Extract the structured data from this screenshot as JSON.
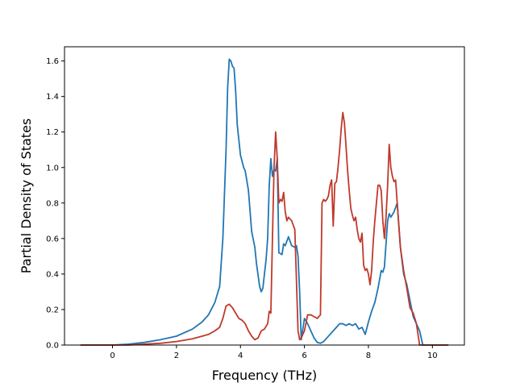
{
  "chart_data": {
    "type": "line",
    "title": "",
    "xlabel": "Frequency (THz)",
    "ylabel": "Partial Density of States",
    "xlim": [
      -1.5,
      11.0
    ],
    "ylim": [
      0.0,
      1.68
    ],
    "x_ticks": [
      0,
      2,
      4,
      6,
      8,
      10
    ],
    "x_tick_labels": [
      "0",
      "2",
      "4",
      "6",
      "8",
      "10"
    ],
    "y_ticks": [
      0.0,
      0.2,
      0.4,
      0.6,
      0.8,
      1.0,
      1.2,
      1.4,
      1.6
    ],
    "y_tick_labels": [
      "0.0",
      "0.2",
      "0.4",
      "0.6",
      "0.8",
      "1.0",
      "1.2",
      "1.4",
      "1.6"
    ],
    "grid": false,
    "legend": "none",
    "series": [
      {
        "color": "#1f77b4",
        "x": [
          -1.0,
          0.0,
          0.5,
          1.0,
          1.5,
          2.0,
          2.5,
          2.8,
          3.0,
          3.2,
          3.35,
          3.45,
          3.55,
          3.6,
          3.65,
          3.7,
          3.75,
          3.8,
          3.85,
          3.9,
          4.0,
          4.1,
          4.15,
          4.25,
          4.35,
          4.45,
          4.5,
          4.6,
          4.65,
          4.7,
          4.75,
          4.8,
          4.85,
          4.9,
          4.95,
          5.0,
          5.05,
          5.1,
          5.15,
          5.2,
          5.3,
          5.35,
          5.4,
          5.5,
          5.6,
          5.7,
          5.75,
          5.8,
          5.85,
          5.9,
          6.0,
          6.1,
          6.2,
          6.3,
          6.4,
          6.5,
          6.6,
          6.7,
          6.8,
          6.9,
          7.0,
          7.1,
          7.2,
          7.3,
          7.4,
          7.5,
          7.6,
          7.7,
          7.8,
          7.9,
          8.0,
          8.1,
          8.2,
          8.3,
          8.4,
          8.45,
          8.5,
          8.6,
          8.65,
          8.7,
          8.8,
          8.9,
          9.0,
          9.1,
          9.2,
          9.3,
          9.4,
          9.5,
          9.6,
          9.7,
          10.0,
          10.5
        ],
        "y": [
          0.0,
          0.0,
          0.005,
          0.015,
          0.03,
          0.05,
          0.09,
          0.13,
          0.17,
          0.24,
          0.33,
          0.6,
          1.1,
          1.45,
          1.61,
          1.6,
          1.57,
          1.56,
          1.43,
          1.24,
          1.07,
          1.0,
          0.98,
          0.87,
          0.64,
          0.55,
          0.46,
          0.33,
          0.3,
          0.32,
          0.4,
          0.48,
          0.6,
          0.9,
          1.05,
          0.95,
          0.99,
          0.98,
          1.05,
          0.52,
          0.51,
          0.57,
          0.56,
          0.61,
          0.56,
          0.55,
          0.56,
          0.5,
          0.3,
          0.03,
          0.15,
          0.12,
          0.08,
          0.04,
          0.015,
          0.01,
          0.02,
          0.04,
          0.06,
          0.08,
          0.1,
          0.12,
          0.12,
          0.11,
          0.12,
          0.11,
          0.12,
          0.09,
          0.1,
          0.06,
          0.13,
          0.19,
          0.24,
          0.32,
          0.42,
          0.41,
          0.44,
          0.7,
          0.74,
          0.72,
          0.75,
          0.8,
          0.55,
          0.4,
          0.34,
          0.25,
          0.16,
          0.12,
          0.08,
          0.0,
          0.0,
          0.0
        ]
      },
      {
        "color": "#c0392b",
        "x": [
          -1.0,
          0.0,
          0.5,
          1.0,
          1.5,
          2.0,
          2.5,
          2.8,
          3.0,
          3.2,
          3.35,
          3.45,
          3.55,
          3.65,
          3.75,
          3.85,
          3.95,
          4.05,
          4.15,
          4.25,
          4.35,
          4.45,
          4.55,
          4.65,
          4.75,
          4.85,
          4.9,
          4.95,
          5.0,
          5.05,
          5.1,
          5.15,
          5.2,
          5.25,
          5.3,
          5.35,
          5.4,
          5.45,
          5.5,
          5.6,
          5.7,
          5.8,
          5.85,
          5.9,
          6.0,
          6.1,
          6.2,
          6.3,
          6.4,
          6.5,
          6.55,
          6.6,
          6.65,
          6.7,
          6.75,
          6.8,
          6.85,
          6.9,
          6.95,
          7.0,
          7.05,
          7.1,
          7.15,
          7.2,
          7.25,
          7.3,
          7.35,
          7.4,
          7.45,
          7.5,
          7.55,
          7.6,
          7.65,
          7.7,
          7.75,
          7.8,
          7.85,
          7.9,
          7.95,
          8.0,
          8.05,
          8.1,
          8.15,
          8.2,
          8.25,
          8.3,
          8.35,
          8.4,
          8.45,
          8.5,
          8.55,
          8.6,
          8.65,
          8.7,
          8.75,
          8.8,
          8.85,
          8.9,
          9.0,
          9.1,
          9.2,
          9.3,
          9.4,
          9.5,
          9.6,
          10.0,
          10.5
        ],
        "y": [
          0.0,
          0.0,
          0.0,
          0.005,
          0.01,
          0.02,
          0.035,
          0.05,
          0.06,
          0.08,
          0.1,
          0.15,
          0.22,
          0.23,
          0.21,
          0.18,
          0.15,
          0.14,
          0.12,
          0.08,
          0.05,
          0.03,
          0.04,
          0.08,
          0.09,
          0.12,
          0.19,
          0.18,
          0.6,
          1.0,
          1.2,
          1.05,
          0.8,
          0.82,
          0.81,
          0.86,
          0.75,
          0.7,
          0.72,
          0.7,
          0.65,
          0.08,
          0.03,
          0.04,
          0.08,
          0.17,
          0.17,
          0.16,
          0.15,
          0.17,
          0.8,
          0.82,
          0.81,
          0.82,
          0.84,
          0.9,
          0.93,
          0.67,
          0.91,
          0.92,
          1.0,
          1.1,
          1.22,
          1.31,
          1.25,
          1.12,
          0.98,
          0.87,
          0.77,
          0.73,
          0.7,
          0.72,
          0.65,
          0.6,
          0.58,
          0.63,
          0.45,
          0.42,
          0.43,
          0.4,
          0.34,
          0.42,
          0.58,
          0.7,
          0.8,
          0.9,
          0.9,
          0.87,
          0.7,
          0.6,
          0.72,
          0.9,
          1.13,
          1.0,
          0.95,
          0.92,
          0.93,
          0.8,
          0.55,
          0.42,
          0.32,
          0.21,
          0.18,
          0.12,
          0.0,
          0.0,
          0.0
        ]
      }
    ]
  }
}
